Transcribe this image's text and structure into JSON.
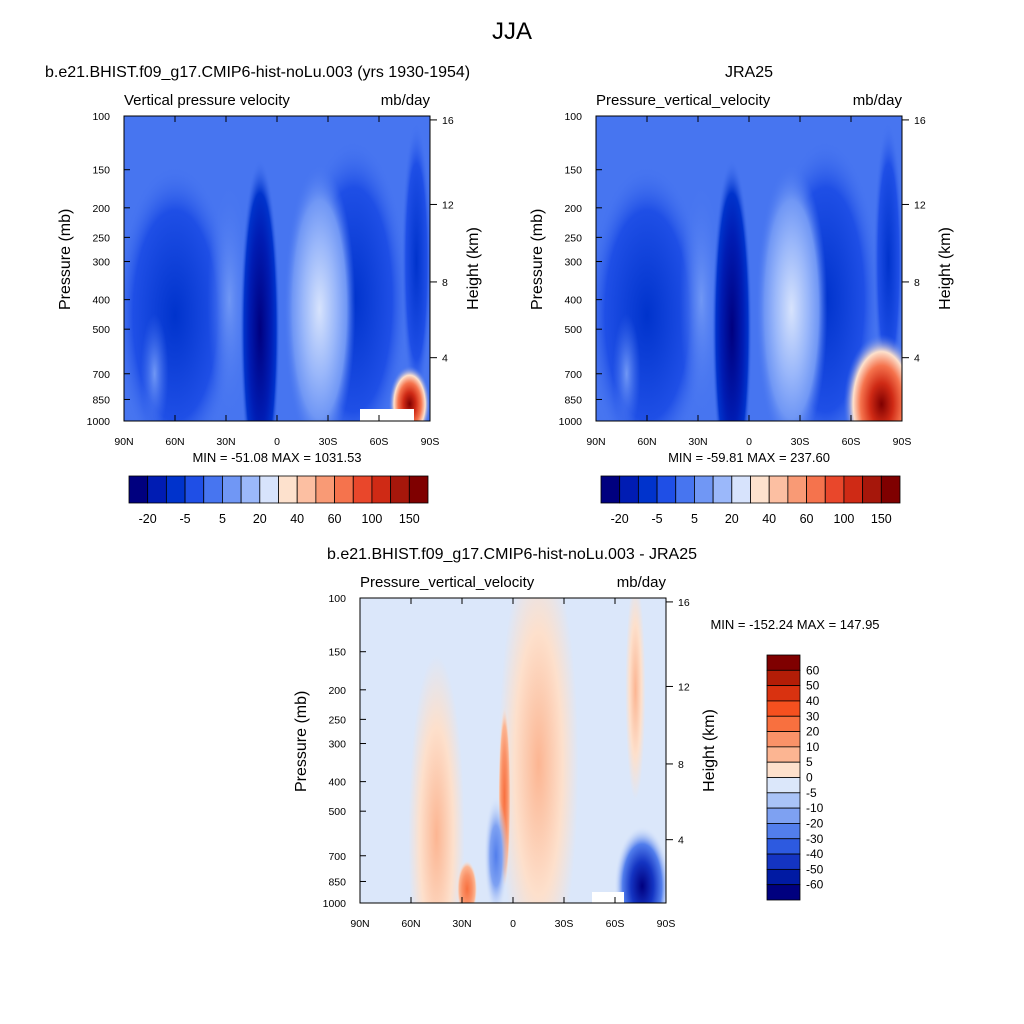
{
  "page": {
    "title": "JJA"
  },
  "chart_data": [
    {
      "type": "heatmap",
      "case_title": "b.e21.BHIST.f09_g17.CMIP6-hist-noLu.003 (yrs 1930-1954)",
      "title": "Vertical pressure velocity",
      "units": "mb/day",
      "ylabel": "Pressure (mb)",
      "ylabel_right": "Height (km)",
      "x_ticks": [
        "90N",
        "60N",
        "30N",
        "0",
        "30S",
        "60S",
        "90S"
      ],
      "x_range": [
        90,
        -90
      ],
      "y_ticks": [
        100,
        150,
        200,
        250,
        300,
        400,
        500,
        700,
        850,
        1000
      ],
      "y_range": [
        100,
        1000
      ],
      "y_scale": "log",
      "y_ticks_right": [
        16,
        12,
        8,
        4
      ],
      "stats": "MIN = -51.08  MAX = 1031.53",
      "colorbar": {
        "orientation": "horizontal",
        "labels": [
          "-20",
          "-5",
          "5",
          "20",
          "40",
          "60",
          "100",
          "150"
        ],
        "colors": [
          "#00007f",
          "#001cb3",
          "#0033cc",
          "#1f4fe6",
          "#4775f0",
          "#7097f5",
          "#9bb8fa",
          "#d7e3fc",
          "#fde1cd",
          "#fcbfa2",
          "#f99a75",
          "#f5734d",
          "#e9472b",
          "#cf2a15",
          "#a6170b",
          "#7f0000"
        ]
      },
      "hotspot_max": 9
    },
    {
      "type": "heatmap",
      "case_title": "JRA25",
      "title": "Pressure_vertical_velocity",
      "units": "mb/day",
      "ylabel": "Pressure (mb)",
      "ylabel_right": "Height (km)",
      "x_ticks": [
        "90N",
        "60N",
        "30N",
        "0",
        "30S",
        "60S",
        "90S"
      ],
      "x_range": [
        90,
        -90
      ],
      "y_ticks": [
        100,
        150,
        200,
        250,
        300,
        400,
        500,
        700,
        850,
        1000
      ],
      "y_range": [
        100,
        1000
      ],
      "y_scale": "log",
      "y_ticks_right": [
        16,
        12,
        8,
        4
      ],
      "stats": "MIN = -59.81  MAX = 237.60",
      "colorbar": {
        "orientation": "horizontal",
        "labels": [
          "-20",
          "-5",
          "5",
          "20",
          "40",
          "60",
          "100",
          "150"
        ],
        "colors": [
          "#00007f",
          "#001cb3",
          "#0033cc",
          "#1f4fe6",
          "#4775f0",
          "#7097f5",
          "#9bb8fa",
          "#d7e3fc",
          "#fde1cd",
          "#fcbfa2",
          "#f99a75",
          "#f5734d",
          "#e9472b",
          "#cf2a15",
          "#a6170b",
          "#7f0000"
        ]
      },
      "hotspot_max": 14
    },
    {
      "type": "heatmap",
      "case_title": "b.e21.BHIST.f09_g17.CMIP6-hist-noLu.003 - JRA25",
      "title": "Pressure_vertical_velocity",
      "units": "mb/day",
      "ylabel": "Pressure (mb)",
      "ylabel_right": "Height (km)",
      "x_ticks": [
        "90N",
        "60N",
        "30N",
        "0",
        "30S",
        "60S",
        "90S"
      ],
      "x_range": [
        90,
        -90
      ],
      "y_ticks": [
        100,
        150,
        200,
        250,
        300,
        400,
        500,
        700,
        850,
        1000
      ],
      "y_range": [
        100,
        1000
      ],
      "y_scale": "log",
      "y_ticks_right": [
        16,
        12,
        8,
        4
      ],
      "stats": "MIN = -152.24  MAX = 147.95",
      "colorbar": {
        "orientation": "vertical",
        "labels": [
          "60",
          "50",
          "40",
          "30",
          "20",
          "10",
          "5",
          "0",
          "-5",
          "-10",
          "-20",
          "-30",
          "-40",
          "-50",
          "-60"
        ],
        "colors": [
          "#7f0000",
          "#b31d07",
          "#d93210",
          "#f5501f",
          "#f8703f",
          "#fa9268",
          "#fcb592",
          "#fde0cc",
          "#dbe7fa",
          "#a9c3f7",
          "#7ea1f2",
          "#527eec",
          "#2d5ae0",
          "#1434c2",
          "#001aa3",
          "#00007f"
        ]
      }
    }
  ]
}
